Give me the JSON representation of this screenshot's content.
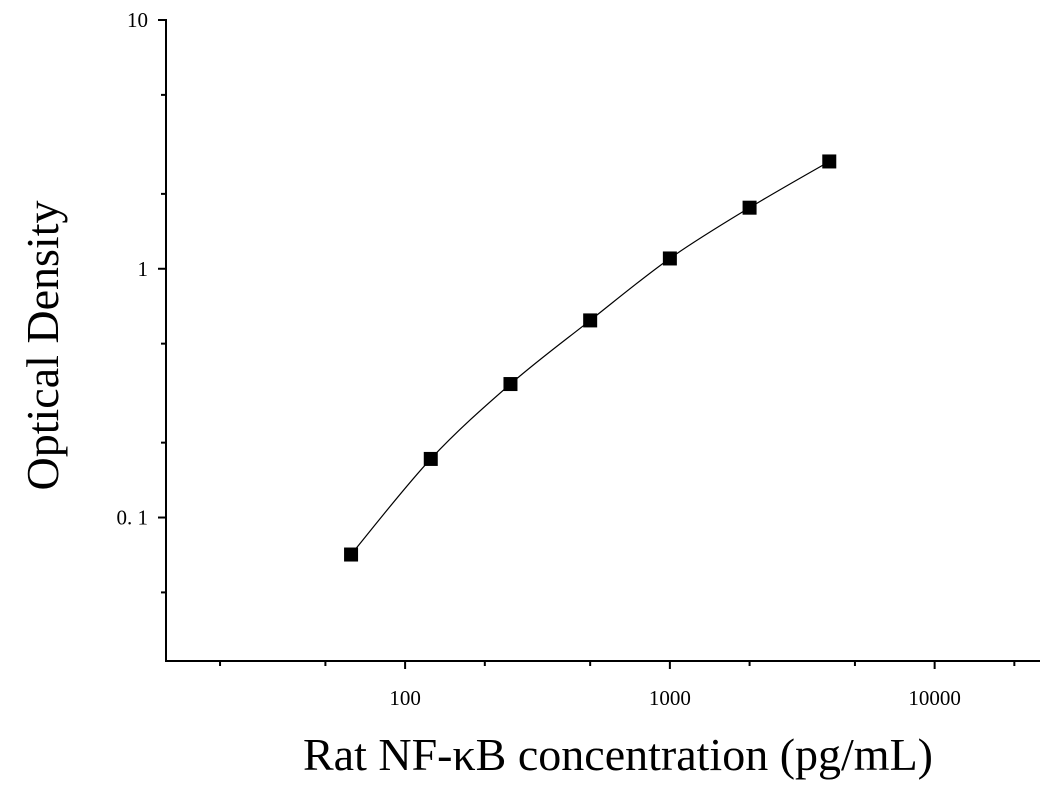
{
  "chart_data": {
    "type": "scatter",
    "title": "",
    "xlabel": "Rat NF-κB concentration (pg/mL)",
    "ylabel": "Optical Density",
    "x_scale": "log",
    "y_scale": "log",
    "xlim": [
      12.5,
      25000
    ],
    "ylim": [
      0.0265,
      10
    ],
    "x_ticks": [
      100,
      1000,
      10000
    ],
    "x_tick_labels": [
      "100",
      "1000",
      "10000"
    ],
    "y_ticks": [
      0.1,
      1,
      10
    ],
    "y_tick_labels": [
      "0. 1",
      "1",
      "10"
    ],
    "grid": false,
    "legend": "none",
    "series": [
      {
        "marker": "square",
        "x": [
          62.5,
          125,
          250,
          500,
          1000,
          2000,
          4000
        ],
        "y": [
          0.071,
          0.172,
          0.344,
          0.62,
          1.1,
          1.76,
          2.7
        ]
      }
    ],
    "fit_curve": true,
    "colors": {
      "marker": "#000000",
      "curve": "#000000",
      "axes": "#000000"
    }
  }
}
